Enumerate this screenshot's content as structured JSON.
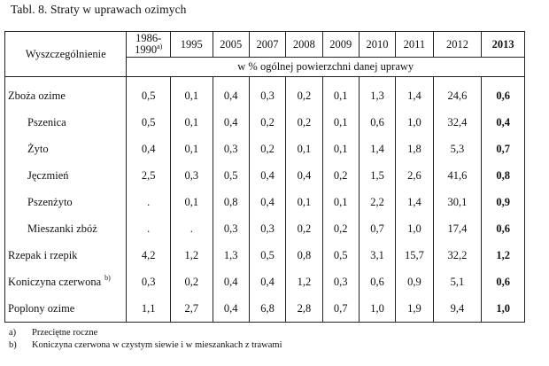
{
  "title": "Tabl. 8. Straty w uprawach ozimych",
  "header": {
    "row_label": "Wyszczególnienie",
    "years": [
      "1986-1990",
      "1995",
      "2005",
      "2007",
      "2008",
      "2009",
      "2010",
      "2011",
      "2012",
      "2013"
    ],
    "first_year_note": "a)",
    "unit": "w % ogólnej powierzchni danej uprawy"
  },
  "rows": [
    {
      "name": "Zboża ozime",
      "note": "",
      "values": [
        "0,5",
        "0,1",
        "0,4",
        "0,3",
        "0,2",
        "0,1",
        "1,3",
        "1,4",
        "24,6",
        "0,6"
      ]
    },
    {
      "name": "Pszenica",
      "note": "",
      "values": [
        "0,5",
        "0,1",
        "0,4",
        "0,2",
        "0,2",
        "0,1",
        "0,6",
        "1,0",
        "32,4",
        "0,4"
      ]
    },
    {
      "name": "Żyto",
      "note": "",
      "values": [
        "0,4",
        "0,1",
        "0,3",
        "0,2",
        "0,1",
        "0,1",
        "1,4",
        "1,8",
        "5,3",
        "0,7"
      ]
    },
    {
      "name": "Jęczmień",
      "note": "",
      "values": [
        "2,5",
        "0,3",
        "0,5",
        "0,4",
        "0,4",
        "0,2",
        "1,5",
        "2,6",
        "41,6",
        "0,8"
      ]
    },
    {
      "name": "Pszenżyto",
      "note": "",
      "values": [
        ".",
        "0,1",
        "0,8",
        "0,4",
        "0,1",
        "0,1",
        "2,2",
        "1,4",
        "30,1",
        "0,9"
      ]
    },
    {
      "name": "Mieszanki zbóż",
      "note": "",
      "values": [
        ".",
        ".",
        "0,3",
        "0,3",
        "0,2",
        "0,2",
        "0,7",
        "1,0",
        "17,4",
        "0,6"
      ]
    },
    {
      "name": "Rzepak i rzepik",
      "note": "",
      "values": [
        "4,2",
        "1,2",
        "1,3",
        "0,5",
        "0,8",
        "0,5",
        "3,1",
        "15,7",
        "32,2",
        "1,2"
      ]
    },
    {
      "name": "Koniczyna czerwona",
      "note": "b)",
      "values": [
        "0,3",
        "0,2",
        "0,4",
        "0,4",
        "1,2",
        "0,3",
        "0,6",
        "0,9",
        "5,1",
        "0,6"
      ]
    },
    {
      "name": "Poplony ozime",
      "note": "",
      "values": [
        "1,1",
        "2,7",
        "0,4",
        "6,8",
        "2,8",
        "0,7",
        "1,0",
        "1,9",
        "9,4",
        "1,0"
      ]
    }
  ],
  "footnotes": [
    {
      "mark": "a)",
      "text": "Przeciętne roczne"
    },
    {
      "mark": "b)",
      "text": "Koniczyna czerwona w czystym siewie i w mieszankach z trawami"
    }
  ]
}
